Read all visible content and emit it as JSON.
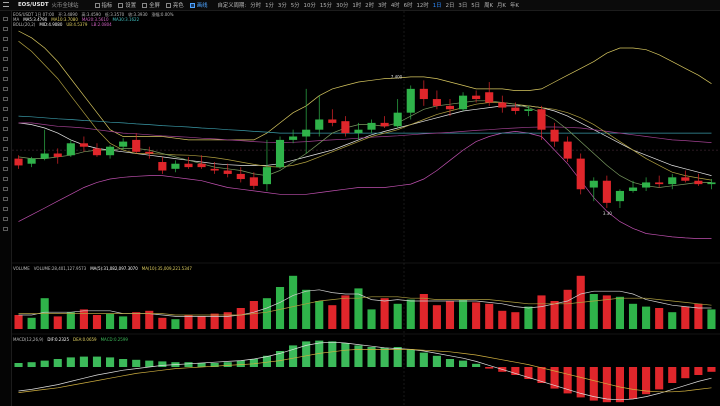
{
  "toolbar": {
    "symbol": "EOS/USDT",
    "symbol_sub": "火币全球站",
    "buttons": [
      {
        "label": "指标",
        "active": false
      },
      {
        "label": "设置",
        "active": false
      },
      {
        "label": "全屏",
        "active": false
      },
      {
        "label": "亮色",
        "active": false
      },
      {
        "label": "画线",
        "active": true
      }
    ],
    "custom_period_label": "自定义周期:",
    "periods": [
      {
        "label": "分时",
        "active": false
      },
      {
        "label": "1分",
        "active": false
      },
      {
        "label": "3分",
        "active": false
      },
      {
        "label": "5分",
        "active": false
      },
      {
        "label": "10分",
        "active": false
      },
      {
        "label": "15分",
        "active": false
      },
      {
        "label": "30分",
        "active": false
      },
      {
        "label": "1时",
        "active": false
      },
      {
        "label": "2时",
        "active": false
      },
      {
        "label": "3时",
        "active": false
      },
      {
        "label": "4时",
        "active": false
      },
      {
        "label": "6时",
        "active": false
      },
      {
        "label": "12时",
        "active": false
      },
      {
        "label": "1日",
        "active": true
      },
      {
        "label": "2日",
        "active": false
      },
      {
        "label": "3日",
        "active": false
      },
      {
        "label": "5日",
        "active": false
      },
      {
        "label": "周K",
        "active": false
      },
      {
        "label": "月K",
        "active": false
      },
      {
        "label": "年K",
        "active": false
      }
    ]
  },
  "legends": {
    "main_row1": [
      {
        "text": "EOS/USDT 1日 07:00",
        "color": "#bbbbbb"
      },
      {
        "text": "开:3.4890",
        "color": "#bbbbbb"
      },
      {
        "text": "高:3.4590",
        "color": "#bbbbbb"
      },
      {
        "text": "低:3.3570",
        "color": "#bbbbbb"
      },
      {
        "text": "收:3.3930",
        "color": "#bbbbbb"
      },
      {
        "text": "涨幅:0.00%",
        "color": "#bbbbbb"
      }
    ],
    "main_row2": [
      {
        "text": "MA",
        "color": "#bbbbbb"
      },
      {
        "text": "MA5:3.4790",
        "color": "#ffffff"
      },
      {
        "text": "MA10:3.7080",
        "color": "#e0d060"
      },
      {
        "text": "MA20:3.5610",
        "color": "#d060c0"
      },
      {
        "text": "MA30:3.1622",
        "color": "#40c0c0"
      }
    ],
    "main_row3": [
      {
        "text": "BOLL(20,2)",
        "color": "#bbbbbb"
      },
      {
        "text": "MID:4.9080",
        "color": "#ffffff"
      },
      {
        "text": "UB:4.5379",
        "color": "#e0d060"
      },
      {
        "text": "LB:2.0804",
        "color": "#d060c0"
      }
    ],
    "volume": [
      {
        "text": "VOLUME",
        "color": "#bbbbbb"
      },
      {
        "text": "VOLUME:28,401,127.9573",
        "color": "#bbbbbb"
      },
      {
        "text": "MA(5):31,082,097.3070",
        "color": "#ffffff"
      },
      {
        "text": "MA(10):35,009,221.5347",
        "color": "#e0d060"
      }
    ],
    "macd": [
      {
        "text": "MACD(12,26,9)",
        "color": "#bbbbbb"
      },
      {
        "text": "DIF:0.2325",
        "color": "#ffffff"
      },
      {
        "text": "DEA:0.0659",
        "color": "#e0d060"
      },
      {
        "text": "MACD:0.2599",
        "color": "#3cba5a"
      }
    ]
  },
  "price_labels": {
    "high_marker": "7.400",
    "low_marker": "3.30"
  },
  "chart_data": {
    "type": "candlestick",
    "ylim": [
      1.5,
      8.2
    ],
    "candles": [
      {
        "o": 4.45,
        "h": 4.55,
        "l": 4.15,
        "c": 4.25
      },
      {
        "o": 4.3,
        "h": 4.5,
        "l": 4.2,
        "c": 4.45
      },
      {
        "o": 4.45,
        "h": 5.3,
        "l": 4.4,
        "c": 4.6
      },
      {
        "o": 4.6,
        "h": 4.75,
        "l": 4.3,
        "c": 4.5
      },
      {
        "o": 4.55,
        "h": 5.0,
        "l": 4.5,
        "c": 4.9
      },
      {
        "o": 4.9,
        "h": 5.1,
        "l": 4.65,
        "c": 4.8
      },
      {
        "o": 4.75,
        "h": 4.9,
        "l": 4.5,
        "c": 4.55
      },
      {
        "o": 4.55,
        "h": 4.85,
        "l": 4.45,
        "c": 4.8
      },
      {
        "o": 4.8,
        "h": 5.05,
        "l": 4.7,
        "c": 4.95
      },
      {
        "o": 5.0,
        "h": 5.2,
        "l": 4.6,
        "c": 4.65
      },
      {
        "o": 4.65,
        "h": 4.8,
        "l": 4.45,
        "c": 4.6
      },
      {
        "o": 4.35,
        "h": 4.5,
        "l": 4.0,
        "c": 4.1
      },
      {
        "o": 4.15,
        "h": 4.4,
        "l": 4.05,
        "c": 4.3
      },
      {
        "o": 4.3,
        "h": 4.5,
        "l": 4.15,
        "c": 4.2
      },
      {
        "o": 4.3,
        "h": 4.55,
        "l": 4.15,
        "c": 4.2
      },
      {
        "o": 4.15,
        "h": 4.35,
        "l": 4.0,
        "c": 4.1
      },
      {
        "o": 4.1,
        "h": 4.3,
        "l": 3.9,
        "c": 4.0
      },
      {
        "o": 4.0,
        "h": 4.2,
        "l": 3.75,
        "c": 3.85
      },
      {
        "o": 3.9,
        "h": 4.05,
        "l": 3.55,
        "c": 3.65
      },
      {
        "o": 3.7,
        "h": 5.0,
        "l": 3.5,
        "c": 4.2
      },
      {
        "o": 4.2,
        "h": 5.1,
        "l": 4.15,
        "c": 5.0
      },
      {
        "o": 5.0,
        "h": 5.3,
        "l": 4.9,
        "c": 5.1
      },
      {
        "o": 5.1,
        "h": 6.5,
        "l": 4.6,
        "c": 5.3
      },
      {
        "o": 5.3,
        "h": 6.3,
        "l": 5.1,
        "c": 5.6
      },
      {
        "o": 5.6,
        "h": 5.9,
        "l": 5.4,
        "c": 5.5
      },
      {
        "o": 5.55,
        "h": 5.7,
        "l": 5.1,
        "c": 5.2
      },
      {
        "o": 5.2,
        "h": 5.5,
        "l": 5.0,
        "c": 5.3
      },
      {
        "o": 5.3,
        "h": 5.6,
        "l": 5.2,
        "c": 5.5
      },
      {
        "o": 5.5,
        "h": 5.7,
        "l": 5.35,
        "c": 5.4
      },
      {
        "o": 5.4,
        "h": 6.2,
        "l": 5.35,
        "c": 5.8
      },
      {
        "o": 5.8,
        "h": 6.6,
        "l": 5.6,
        "c": 6.5
      },
      {
        "o": 6.5,
        "h": 6.75,
        "l": 6.0,
        "c": 6.2
      },
      {
        "o": 6.2,
        "h": 6.45,
        "l": 5.9,
        "c": 6.0
      },
      {
        "o": 6.0,
        "h": 6.2,
        "l": 5.7,
        "c": 5.9
      },
      {
        "o": 5.9,
        "h": 6.4,
        "l": 5.85,
        "c": 6.3
      },
      {
        "o": 6.3,
        "h": 6.45,
        "l": 6.1,
        "c": 6.2
      },
      {
        "o": 6.4,
        "h": 6.7,
        "l": 6.0,
        "c": 6.1
      },
      {
        "o": 6.1,
        "h": 6.3,
        "l": 5.8,
        "c": 5.95
      },
      {
        "o": 5.95,
        "h": 6.1,
        "l": 5.75,
        "c": 5.85
      },
      {
        "o": 5.85,
        "h": 6.0,
        "l": 5.7,
        "c": 5.9
      },
      {
        "o": 5.9,
        "h": 6.0,
        "l": 5.0,
        "c": 5.3
      },
      {
        "o": 5.3,
        "h": 5.5,
        "l": 4.8,
        "c": 4.95
      },
      {
        "o": 4.95,
        "h": 5.1,
        "l": 4.35,
        "c": 4.45
      },
      {
        "o": 4.45,
        "h": 4.6,
        "l": 3.4,
        "c": 3.55
      },
      {
        "o": 3.6,
        "h": 3.9,
        "l": 3.2,
        "c": 3.8
      },
      {
        "o": 3.8,
        "h": 3.95,
        "l": 3.0,
        "c": 3.15
      },
      {
        "o": 3.2,
        "h": 3.55,
        "l": 3.0,
        "c": 3.5
      },
      {
        "o": 3.5,
        "h": 3.8,
        "l": 3.45,
        "c": 3.6
      },
      {
        "o": 3.6,
        "h": 3.9,
        "l": 3.5,
        "c": 3.75
      },
      {
        "o": 3.75,
        "h": 3.95,
        "l": 3.6,
        "c": 3.7
      },
      {
        "o": 3.7,
        "h": 4.0,
        "l": 3.55,
        "c": 3.9
      },
      {
        "o": 3.9,
        "h": 4.1,
        "l": 3.75,
        "c": 3.8
      },
      {
        "o": 3.8,
        "h": 4.0,
        "l": 3.65,
        "c": 3.7
      },
      {
        "o": 3.7,
        "h": 3.85,
        "l": 3.55,
        "c": 3.75
      }
    ],
    "ma5": [
      4.5,
      4.45,
      4.45,
      4.5,
      4.55,
      4.65,
      4.7,
      4.7,
      4.75,
      4.75,
      4.7,
      4.6,
      4.5,
      4.4,
      4.3,
      4.2,
      4.15,
      4.1,
      4.0,
      3.95,
      4.1,
      4.35,
      4.6,
      4.9,
      5.2,
      5.35,
      5.45,
      5.45,
      5.4,
      5.5,
      5.7,
      5.9,
      6.0,
      6.05,
      6.1,
      6.15,
      6.15,
      6.1,
      6.05,
      5.95,
      5.8,
      5.6,
      5.3,
      4.95,
      4.6,
      4.25,
      3.95,
      3.75,
      3.65,
      3.6,
      3.65,
      3.7,
      3.75,
      3.75
    ],
    "ma10": [
      7.9,
      7.6,
      7.2,
      6.8,
      6.3,
      5.8,
      5.3,
      4.9,
      4.7,
      4.6,
      4.6,
      4.58,
      4.56,
      4.55,
      4.52,
      4.48,
      4.42,
      4.35,
      4.28,
      4.22,
      4.2,
      4.25,
      4.35,
      4.5,
      4.65,
      4.8,
      4.95,
      5.1,
      5.2,
      5.3,
      5.45,
      5.6,
      5.75,
      5.85,
      5.95,
      6.05,
      6.1,
      6.1,
      6.05,
      6.0,
      5.95,
      5.9,
      5.8,
      5.65,
      5.45,
      5.2,
      4.95,
      4.7,
      4.45,
      4.25,
      4.05,
      3.95,
      3.88,
      3.82
    ],
    "ma20": [
      5.5,
      5.5,
      5.45,
      5.4,
      5.38,
      5.35,
      5.3,
      5.25,
      5.2,
      5.18,
      5.15,
      5.12,
      5.1,
      5.08,
      5.05,
      5.03,
      5.0,
      4.98,
      4.95,
      4.93,
      4.92,
      4.93,
      4.95,
      4.98,
      5.0,
      5.02,
      5.05,
      5.08,
      5.1,
      5.12,
      5.15,
      5.18,
      5.2,
      5.22,
      5.25,
      5.28,
      5.3,
      5.33,
      5.35,
      5.37,
      5.38,
      5.38,
      5.37,
      5.35,
      5.3,
      5.25,
      5.2,
      5.15,
      5.1,
      5.05,
      5.0,
      4.98,
      4.95,
      4.92
    ],
    "ma30": [
      5.7,
      5.68,
      5.65,
      5.62,
      5.6,
      5.57,
      5.55,
      5.52,
      5.5,
      5.47,
      5.45,
      5.42,
      5.4,
      5.38,
      5.35,
      5.33,
      5.3,
      5.28,
      5.25,
      5.23,
      5.2,
      5.2,
      5.2,
      5.2,
      5.2,
      5.2,
      5.2,
      5.2,
      5.2,
      5.2,
      5.2,
      5.2,
      5.2,
      5.2,
      5.2,
      5.2,
      5.2,
      5.2,
      5.2,
      5.2,
      5.2,
      5.2,
      5.2,
      5.2,
      5.2,
      5.2,
      5.2,
      5.2,
      5.2,
      5.2,
      5.2,
      5.2,
      5.2,
      5.2
    ],
    "boll_mid": [
      5.5,
      5.45,
      5.35,
      5.2,
      5.0,
      4.85,
      4.75,
      4.7,
      4.65,
      4.6,
      4.55,
      4.5,
      4.45,
      4.4,
      4.35,
      4.3,
      4.27,
      4.25,
      4.25,
      4.25,
      4.3,
      4.4,
      4.5,
      4.6,
      4.7,
      4.85,
      5.0,
      5.15,
      5.25,
      5.35,
      5.45,
      5.55,
      5.65,
      5.75,
      5.85,
      5.9,
      5.95,
      6.0,
      6.0,
      6.0,
      5.95,
      5.85,
      5.7,
      5.5,
      5.3,
      5.1,
      4.9,
      4.7,
      4.55,
      4.4,
      4.25,
      4.15,
      4.05,
      3.95
    ],
    "boll_ub": [
      8.2,
      8.0,
      7.7,
      7.3,
      6.8,
      6.3,
      5.8,
      5.3,
      5.1,
      5.1,
      5.1,
      5.1,
      5.05,
      5.0,
      5.0,
      5.0,
      5.0,
      5.0,
      5.0,
      5.2,
      5.5,
      5.8,
      6.0,
      6.3,
      6.5,
      6.6,
      6.7,
      6.75,
      6.8,
      6.82,
      6.85,
      6.85,
      6.8,
      6.7,
      6.6,
      6.5,
      6.5,
      6.5,
      6.45,
      6.45,
      6.5,
      6.7,
      6.9,
      7.1,
      7.3,
      7.55,
      7.7,
      7.7,
      7.65,
      7.5,
      7.3,
      7.1,
      6.9,
      6.65
    ],
    "boll_lb": [
      2.6,
      2.8,
      3.0,
      3.2,
      3.4,
      3.6,
      3.75,
      3.85,
      3.9,
      3.93,
      3.95,
      3.95,
      3.9,
      3.85,
      3.8,
      3.7,
      3.6,
      3.55,
      3.5,
      3.45,
      3.4,
      3.4,
      3.4,
      3.45,
      3.5,
      3.55,
      3.6,
      3.6,
      3.6,
      3.65,
      3.7,
      3.85,
      4.1,
      4.4,
      4.7,
      4.95,
      5.1,
      5.2,
      5.25,
      5.2,
      5.1,
      4.7,
      4.3,
      3.8,
      3.3,
      2.9,
      2.6,
      2.4,
      2.25,
      2.2,
      2.15,
      2.12,
      2.1,
      2.1
    ],
    "volume": [
      10,
      8,
      22,
      9,
      12,
      14,
      10,
      11,
      9,
      12,
      13,
      8,
      7,
      10,
      9,
      11,
      12,
      15,
      20,
      22,
      30,
      38,
      28,
      20,
      17,
      24,
      29,
      14,
      22,
      18,
      21,
      25,
      17,
      20,
      21,
      19,
      18,
      13,
      12,
      16,
      24,
      20,
      28,
      38,
      25,
      24,
      23,
      18,
      16,
      15,
      12,
      16,
      18,
      14
    ],
    "volume_ma5": [
      10,
      10,
      12,
      12,
      12,
      13,
      13,
      13,
      11,
      11,
      11,
      10,
      9,
      9,
      9,
      9,
      9,
      10,
      12,
      15,
      19,
      24,
      27,
      28,
      26,
      25,
      25,
      21,
      20,
      21,
      20,
      20,
      20,
      20,
      20,
      20,
      19,
      18,
      16,
      15,
      16,
      18,
      20,
      25,
      27,
      27,
      27,
      25,
      21,
      19,
      17,
      16,
      15,
      15
    ],
    "volume_ma10": [
      11,
      11,
      11,
      11,
      11,
      11,
      11,
      11,
      11,
      11,
      11,
      11,
      10,
      10,
      10,
      10,
      10,
      10,
      11,
      12,
      14,
      16,
      18,
      20,
      21,
      22,
      22,
      23,
      23,
      23,
      22,
      22,
      21,
      21,
      21,
      21,
      21,
      20,
      19,
      18,
      18,
      18,
      18,
      19,
      20,
      21,
      22,
      22,
      22,
      21,
      20,
      19,
      18,
      17
    ],
    "macd_hist": [
      0.05,
      0.06,
      0.08,
      0.1,
      0.12,
      0.13,
      0.13,
      0.12,
      0.1,
      0.09,
      0.08,
      0.07,
      0.06,
      0.06,
      0.05,
      0.05,
      0.06,
      0.08,
      0.1,
      0.14,
      0.2,
      0.27,
      0.32,
      0.33,
      0.32,
      0.3,
      0.27,
      0.25,
      0.24,
      0.25,
      0.22,
      0.18,
      0.14,
      0.1,
      0.08,
      0.04,
      -0.02,
      -0.06,
      -0.1,
      -0.15,
      -0.2,
      -0.27,
      -0.33,
      -0.38,
      -0.42,
      -0.44,
      -0.44,
      -0.4,
      -0.34,
      -0.28,
      -0.2,
      -0.14,
      -0.1,
      -0.06
    ],
    "macd_dif": [
      -0.3,
      -0.28,
      -0.25,
      -0.22,
      -0.18,
      -0.14,
      -0.1,
      -0.07,
      -0.04,
      -0.02,
      0.0,
      0.02,
      0.03,
      0.04,
      0.05,
      0.06,
      0.07,
      0.08,
      0.1,
      0.13,
      0.17,
      0.22,
      0.27,
      0.3,
      0.31,
      0.3,
      0.28,
      0.26,
      0.24,
      0.23,
      0.22,
      0.2,
      0.17,
      0.14,
      0.11,
      0.07,
      0.02,
      -0.03,
      -0.08,
      -0.13,
      -0.18,
      -0.23,
      -0.28,
      -0.33,
      -0.37,
      -0.4,
      -0.41,
      -0.4,
      -0.37,
      -0.33,
      -0.28,
      -0.23,
      -0.18,
      -0.14
    ],
    "macd_dea": [
      -0.32,
      -0.3,
      -0.28,
      -0.26,
      -0.23,
      -0.2,
      -0.17,
      -0.14,
      -0.11,
      -0.08,
      -0.06,
      -0.04,
      -0.02,
      -0.01,
      0.0,
      0.01,
      0.02,
      0.03,
      0.04,
      0.06,
      0.08,
      0.11,
      0.14,
      0.17,
      0.19,
      0.21,
      0.22,
      0.22,
      0.22,
      0.22,
      0.22,
      0.21,
      0.2,
      0.19,
      0.17,
      0.15,
      0.12,
      0.09,
      0.06,
      0.03,
      -0.01,
      -0.05,
      -0.09,
      -0.13,
      -0.17,
      -0.21,
      -0.25,
      -0.28,
      -0.3,
      -0.31,
      -0.31,
      -0.3,
      -0.28,
      -0.26
    ]
  }
}
